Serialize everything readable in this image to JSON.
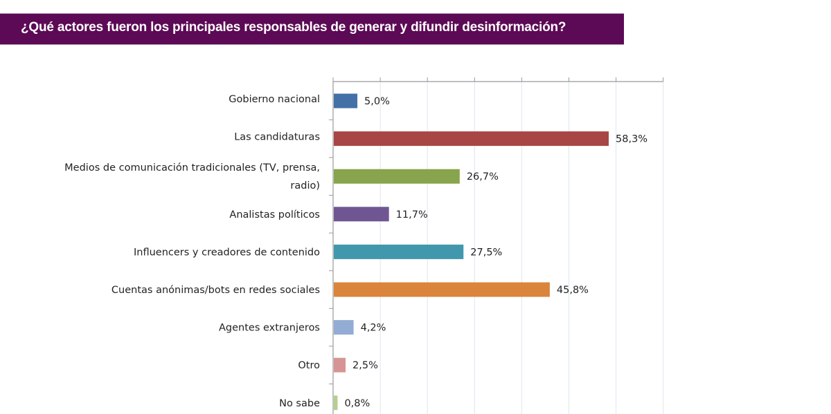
{
  "header": {
    "title": "¿Qué actores fueron los principales responsables de generar y difundir desinformación?",
    "background_color": "#5c0a55"
  },
  "chart_data": {
    "type": "bar",
    "orientation": "horizontal",
    "title": "¿Qué actores fueron los principales responsables de generar y difundir desinformación?",
    "xlabel": "",
    "ylabel": "",
    "xlim": [
      0,
      70
    ],
    "grid": true,
    "grid_step": 10,
    "x_tick_labels_visible": false,
    "categories": [
      [
        "Gobierno nacional"
      ],
      [
        "Las candidaturas"
      ],
      [
        "Medios de comunicación tradicionales (TV, prensa,",
        "radio)"
      ],
      [
        "Analistas políticos"
      ],
      [
        "Influencers y creadores de contenido"
      ],
      [
        "Cuentas anónimas/bots en redes sociales"
      ],
      [
        "Agentes extranjeros"
      ],
      [
        "Otro"
      ],
      [
        "No sabe"
      ]
    ],
    "values": [
      5.0,
      58.3,
      26.7,
      11.7,
      27.5,
      45.8,
      4.2,
      2.5,
      0.8
    ],
    "value_labels": [
      "5,0%",
      "58,3%",
      "26,7%",
      "11,7%",
      "27,5%",
      "45,8%",
      "4,2%",
      "2,5%",
      "0,8%"
    ],
    "colors": [
      "#4470a8",
      "#a84645",
      "#88a44c",
      "#6f5693",
      "#4198ac",
      "#da843c",
      "#93acd4",
      "#d69594",
      "#b5cf8e"
    ]
  }
}
